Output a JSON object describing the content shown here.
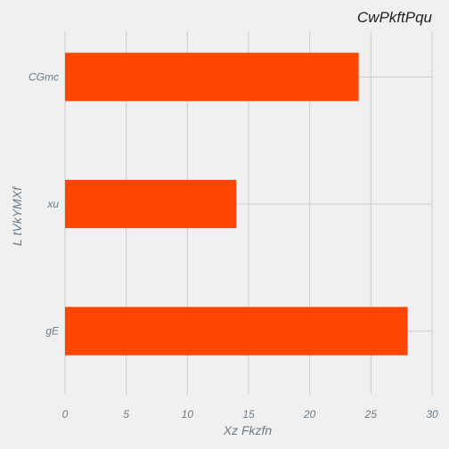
{
  "chart_data": {
    "type": "bar",
    "orientation": "horizontal",
    "title": "CwPkftPqu",
    "xlabel": "Xz Fkzfn",
    "ylabel": "L tVkYMXf",
    "categories": [
      "CGmc",
      "xu",
      "gE"
    ],
    "values": [
      24,
      14,
      28
    ],
    "xlim": [
      0,
      30
    ],
    "x_ticks": [
      "0",
      "5",
      "10",
      "15",
      "20",
      "25",
      "30"
    ],
    "grid": true,
    "colors": {
      "bar": "#ff4500",
      "background": "#f0f0f0",
      "grid": "#cbcbcb"
    }
  }
}
